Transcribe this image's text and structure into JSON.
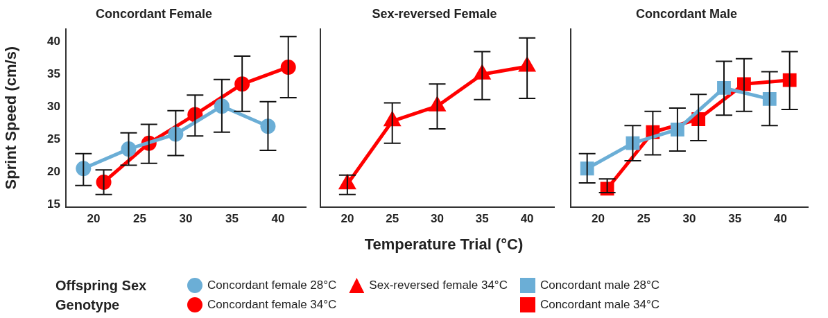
{
  "chart_data": [
    {
      "type": "line",
      "title": "Concordant Female",
      "ylabel": "Sprint Speed (cm/s)",
      "xlim": [
        17,
        43
      ],
      "ylim": [
        14.6,
        42
      ],
      "xticks": [
        20,
        25,
        30,
        35,
        40
      ],
      "yticks": [
        15,
        20,
        25,
        30,
        35,
        40
      ],
      "grid": false,
      "legend": "bottom",
      "legend_title": "Offspring Sex Genotype",
      "series": [
        {
          "name": "Concordant female 28°C",
          "color": "#6baed6",
          "marker": "circle",
          "x": [
            18.9,
            23.8,
            28.9,
            33.9,
            38.9
          ],
          "values": [
            20.5,
            23.5,
            25.8,
            30.1,
            27.0
          ],
          "errors": [
            [
              17.9,
              22.8
            ],
            [
              21.0,
              26.0
            ],
            [
              22.5,
              29.4
            ],
            [
              26.1,
              34.2
            ],
            [
              23.3,
              30.8
            ]
          ]
        },
        {
          "name": "Concordant female 34°C",
          "color": "#ff0000",
          "marker": "circle",
          "x": [
            21.1,
            26.0,
            31.0,
            36.1,
            41.1
          ],
          "values": [
            18.4,
            24.4,
            28.8,
            33.5,
            36.1
          ],
          "errors": [
            [
              16.5,
              20.3
            ],
            [
              21.3,
              27.3
            ],
            [
              25.5,
              31.8
            ],
            [
              29.3,
              37.8
            ],
            [
              31.4,
              40.8
            ]
          ]
        }
      ]
    },
    {
      "type": "line",
      "title": "Sex-reversed Female",
      "xlabel": "Temperature Trial (°C)",
      "xlim": [
        17,
        43
      ],
      "ylim": [
        14.6,
        42
      ],
      "xticks": [
        20,
        25,
        30,
        35,
        40
      ],
      "tick_labels": "x",
      "grid": false,
      "legend": "bottom",
      "series": [
        {
          "name": "Sex-reversed female 34°C",
          "color": "#ff0000",
          "marker": "triangle",
          "x": [
            20,
            25,
            30,
            35,
            40
          ],
          "values": [
            18.1,
            27.8,
            30.1,
            35.0,
            36.2
          ],
          "errors": [
            [
              16.5,
              19.5
            ],
            [
              24.4,
              30.6
            ],
            [
              26.6,
              33.5
            ],
            [
              31.1,
              38.5
            ],
            [
              31.3,
              40.6
            ]
          ]
        }
      ]
    },
    {
      "type": "line",
      "title": "Concordant Male",
      "xlim": [
        17,
        43
      ],
      "ylim": [
        14.6,
        42
      ],
      "xticks": [
        20,
        25,
        30,
        35,
        40
      ],
      "tick_labels": "x",
      "grid": false,
      "legend": "bottom",
      "series": [
        {
          "name": "Concordant male 28°C",
          "color": "#6baed6",
          "marker": "square",
          "x": [
            18.8,
            23.8,
            28.7,
            33.8,
            38.8
          ],
          "values": [
            20.5,
            24.4,
            26.5,
            32.9,
            31.2
          ],
          "errors": [
            [
              18.3,
              22.8
            ],
            [
              21.7,
              27.1
            ],
            [
              23.2,
              29.8
            ],
            [
              28.7,
              37.0
            ],
            [
              27.1,
              35.4
            ]
          ]
        },
        {
          "name": "Concordant male 34°C",
          "color": "#ff0000",
          "marker": "square",
          "x": [
            21.0,
            26.0,
            31.0,
            36.0,
            41.0
          ],
          "values": [
            17.4,
            26.1,
            28.1,
            33.5,
            34.1
          ],
          "errors": [
            [
              16.8,
              18.9
            ],
            [
              22.6,
              29.3
            ],
            [
              24.8,
              31.9
            ],
            [
              29.3,
              37.4
            ],
            [
              29.6,
              38.5
            ]
          ]
        }
      ]
    }
  ]
}
